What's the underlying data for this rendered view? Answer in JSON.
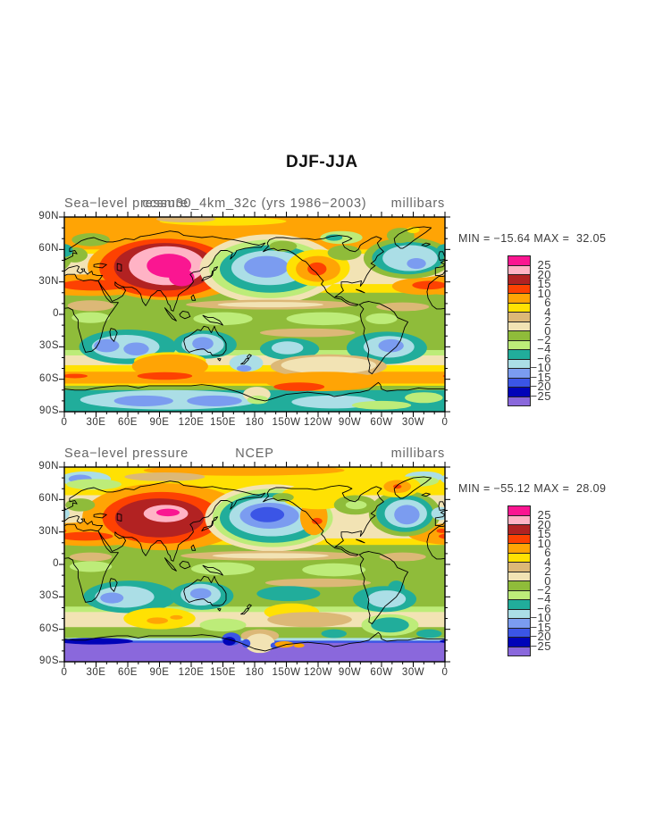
{
  "page": {
    "background": "#ffffff"
  },
  "chart_data": {
    "type": "heatmap",
    "main_title": "DJF-JJA",
    "quantity": "Sea-level pressure difference (DJF minus JJA)",
    "units": "millibars",
    "colorbar_labels": [
      "25",
      "20",
      "15",
      "10",
      "6",
      "4",
      "2",
      "0",
      "−2",
      "−4",
      "−6",
      "−10",
      "−15",
      "−20",
      "−25"
    ],
    "palette": [
      "#fa1691",
      "#ffb3c5",
      "#b22222",
      "#fd4102",
      "#ffa405",
      "#ffe103",
      "#dcb877",
      "#f2e3b4",
      "#8fbc3a",
      "#bdec79",
      "#21ad9b",
      "#abdee6",
      "#7b9cf0",
      "#3b55e6",
      "#0003b8",
      "#8a68dc"
    ],
    "x_tick_labels": [
      "0",
      "30E",
      "60E",
      "90E",
      "120E",
      "150E",
      "180",
      "150W",
      "120W",
      "90W",
      "60W",
      "30W",
      "0"
    ],
    "y_tick_labels": [
      "90N",
      "60N",
      "30N",
      "0",
      "30S",
      "60S",
      "90S"
    ],
    "axes": {
      "lon_range": [
        0,
        360
      ],
      "lat_range": [
        -90,
        90
      ],
      "major_tick_deg": 30,
      "minor_tick_deg": 10,
      "grid": false
    },
    "maps": [
      {
        "id": "model",
        "title_left": "Sea−level pressure",
        "title_center": "ccsm30_4km_32c (yrs 1986−2003)",
        "title_right": "millibars",
        "minmax": "MIN = −15.64 MAX =  32.05",
        "min": -15.64,
        "max": 32.05,
        "base": 8,
        "bands": [
          [
            90,
            56,
            4
          ],
          [
            60,
            52,
            5
          ],
          [
            56,
            13,
            7
          ],
          [
            28,
            13,
            5
          ],
          [
            20,
            -36,
            8
          ],
          [
            -33,
            -41,
            9
          ],
          [
            -38,
            -49,
            7
          ],
          [
            -47,
            -55,
            5
          ],
          [
            -53,
            -66,
            4
          ],
          [
            -64,
            -68,
            5
          ],
          [
            -66,
            -72,
            8
          ],
          [
            -70,
            -90,
            10
          ]
        ],
        "blobs": [
          [
            100,
            44,
            78,
            31,
            4
          ],
          [
            25,
            27,
            62,
            10,
            4
          ],
          [
            340,
            26,
            30,
            8,
            4
          ],
          [
            95,
            43,
            62,
            27,
            3
          ],
          [
            28,
            27,
            32,
            5,
            3
          ],
          [
            345,
            27,
            16,
            4,
            3
          ],
          [
            95,
            44,
            48,
            22,
            2
          ],
          [
            97,
            45,
            36,
            18,
            1
          ],
          [
            99,
            45,
            21,
            11,
            0
          ],
          [
            111,
            34,
            12,
            8,
            0
          ],
          [
            194,
            42,
            66,
            32,
            7
          ],
          [
            194,
            42,
            57,
            27,
            9
          ],
          [
            195,
            42,
            48,
            22,
            10
          ],
          [
            194,
            43,
            36,
            16,
            11
          ],
          [
            191,
            44,
            21,
            10,
            12
          ],
          [
            240,
            43,
            30,
            17,
            5
          ],
          [
            240,
            42,
            21,
            12,
            4
          ],
          [
            239,
            42,
            9,
            6,
            3
          ],
          [
            325,
            52,
            42,
            19,
            8
          ],
          [
            325,
            52,
            34,
            15,
            10
          ],
          [
            327,
            52,
            26,
            12,
            11
          ],
          [
            333,
            47,
            9,
            5,
            12
          ],
          [
            207,
            63,
            13,
            5,
            8
          ],
          [
            25,
            69,
            18,
            6,
            8
          ],
          [
            10,
            55,
            12,
            7,
            8
          ],
          [
            0,
            59,
            8,
            6,
            10
          ],
          [
            318,
            73,
            13,
            7,
            8
          ],
          [
            330,
            78,
            6,
            3,
            5
          ],
          [
            265,
            57,
            16,
            7,
            8
          ],
          [
            262,
            71,
            20,
            6,
            9
          ],
          [
            255,
            71,
            8,
            3,
            10
          ],
          [
            150,
            86,
            60,
            4,
            5
          ],
          [
            115,
            88,
            28,
            3,
            6
          ],
          [
            195,
            9,
            80,
            4.5,
            6
          ],
          [
            195,
            9,
            50,
            2.5,
            7
          ],
          [
            320,
            7,
            25,
            4,
            6
          ],
          [
            25,
            8,
            22,
            5,
            6
          ],
          [
            150,
            -4,
            28,
            6,
            9
          ],
          [
            245,
            -4,
            35,
            6,
            9
          ],
          [
            300,
            -4,
            15,
            5,
            9
          ],
          [
            25,
            -3,
            18,
            5,
            9
          ],
          [
            230,
            -17,
            45,
            4,
            6
          ],
          [
            60,
            -30,
            46,
            16,
            10
          ],
          [
            58,
            -30,
            32,
            11,
            11
          ],
          [
            40,
            -29,
            12,
            6,
            12
          ],
          [
            68,
            -32,
            12,
            6,
            12
          ],
          [
            133,
            -28,
            30,
            13,
            10
          ],
          [
            131,
            -28,
            20,
            10,
            11
          ],
          [
            131,
            -27,
            10,
            6,
            12
          ],
          [
            172,
            -45,
            16,
            8,
            11
          ],
          [
            170,
            -50,
            7,
            3,
            12
          ],
          [
            213,
            -32,
            28,
            10,
            10
          ],
          [
            211,
            -31,
            15,
            6,
            11
          ],
          [
            305,
            -31,
            38,
            15,
            10
          ],
          [
            307,
            -30,
            24,
            10,
            11
          ],
          [
            309,
            -29,
            12,
            6,
            12
          ],
          [
            100,
            -43,
            34,
            8,
            5
          ],
          [
            100,
            -48,
            36,
            11,
            4
          ],
          [
            95,
            -57,
            26,
            3.5,
            3
          ],
          [
            250,
            -48,
            55,
            11,
            6
          ],
          [
            250,
            -47,
            45,
            8,
            7
          ],
          [
            245,
            -62,
            55,
            9,
            4
          ],
          [
            222,
            -67,
            24,
            4,
            3
          ],
          [
            10,
            -57,
            12,
            2,
            3
          ],
          [
            100,
            -79,
            85,
            9,
            11
          ],
          [
            75,
            -80,
            28,
            5,
            12
          ],
          [
            142,
            -80,
            26,
            5,
            12
          ],
          [
            182,
            -74,
            13,
            7,
            7
          ],
          [
            183,
            -79,
            10,
            4,
            9
          ],
          [
            255,
            -81,
            40,
            6,
            11
          ],
          [
            300,
            -84,
            28,
            4,
            9
          ],
          [
            340,
            -77,
            18,
            5,
            9
          ]
        ]
      },
      {
        "id": "ncep",
        "title_left": "Sea−level pressure",
        "title_center": "NCEP",
        "title_right": "millibars",
        "minmax": "MIN = −55.12 MAX =  28.09",
        "min": -55.12,
        "max": 28.09,
        "base": 8,
        "bands": [
          [
            90,
            60,
            5
          ],
          [
            64,
            12,
            7
          ],
          [
            24,
            13,
            5
          ],
          [
            18,
            -42,
            8
          ],
          [
            -39,
            -46,
            9
          ],
          [
            -44,
            -60,
            7
          ],
          [
            -58,
            -70,
            8
          ],
          [
            -68,
            -72,
            11
          ],
          [
            -70.5,
            -73.5,
            13
          ],
          [
            -72.5,
            -90,
            15
          ]
        ],
        "blobs": [
          [
            95,
            44,
            78,
            31,
            4
          ],
          [
            25,
            28,
            60,
            11,
            4
          ],
          [
            352,
            29,
            14,
            5,
            4
          ],
          [
            92,
            43,
            56,
            24,
            3
          ],
          [
            20,
            26,
            26,
            4,
            3
          ],
          [
            357,
            31,
            5,
            2,
            3
          ],
          [
            90,
            43,
            42,
            18,
            2
          ],
          [
            96,
            47,
            21,
            8,
            1
          ],
          [
            98,
            48,
            11,
            3.5,
            0
          ],
          [
            197,
            43,
            64,
            31,
            7
          ],
          [
            197,
            43,
            57,
            27,
            9
          ],
          [
            197,
            43,
            50,
            23,
            10
          ],
          [
            196,
            44,
            40,
            18,
            11
          ],
          [
            194,
            45,
            28,
            12,
            12
          ],
          [
            192,
            46,
            16,
            7,
            13
          ],
          [
            236,
            44,
            13,
            17,
            4
          ],
          [
            239,
            40,
            5,
            3,
            3
          ],
          [
            322,
            47,
            34,
            21,
            8
          ],
          [
            322,
            47,
            27,
            17,
            10
          ],
          [
            323,
            47,
            20,
            13,
            11
          ],
          [
            324,
            46,
            12,
            9,
            12
          ],
          [
            356,
            47,
            9,
            6,
            11
          ],
          [
            240,
            63,
            35,
            12,
            5
          ],
          [
            207,
            62,
            10,
            4,
            8
          ],
          [
            275,
            55,
            20,
            9,
            8
          ],
          [
            276,
            55,
            10,
            4,
            9
          ],
          [
            15,
            55,
            14,
            6,
            8
          ],
          [
            20,
            79,
            24,
            7,
            11
          ],
          [
            15,
            79,
            11,
            4,
            12
          ],
          [
            28,
            74,
            26,
            5,
            9
          ],
          [
            340,
            81,
            18,
            5,
            11
          ],
          [
            334,
            77,
            20,
            5,
            9
          ],
          [
            315,
            72,
            22,
            10,
            5
          ],
          [
            315,
            72,
            13,
            6,
            4
          ],
          [
            315,
            72,
            4,
            2,
            3
          ],
          [
            170,
            87,
            95,
            5,
            4
          ],
          [
            95,
            81,
            38,
            4,
            6
          ],
          [
            195,
            8,
            85,
            4.5,
            6
          ],
          [
            195,
            8,
            55,
            2.5,
            7
          ],
          [
            320,
            7,
            22,
            4,
            6
          ],
          [
            25,
            7,
            20,
            4,
            6
          ],
          [
            150,
            -4,
            30,
            6,
            9
          ],
          [
            255,
            -5,
            30,
            6,
            9
          ],
          [
            25,
            -2,
            20,
            5,
            9
          ],
          [
            240,
            -17,
            50,
            4,
            6
          ],
          [
            314,
            -22,
            8,
            7,
            10
          ],
          [
            62,
            -30,
            44,
            15,
            10
          ],
          [
            57,
            -30,
            28,
            10,
            11
          ],
          [
            45,
            -31,
            11,
            5,
            12
          ],
          [
            130,
            -29,
            30,
            13,
            10
          ],
          [
            129,
            -28,
            19,
            10,
            11
          ],
          [
            129,
            -27,
            10,
            5,
            12
          ],
          [
            212,
            -27,
            30,
            7,
            10
          ],
          [
            303,
            -32,
            30,
            12,
            10
          ],
          [
            305,
            -32,
            18,
            8,
            11
          ],
          [
            90,
            -50,
            34,
            10,
            5
          ],
          [
            88,
            -52,
            10,
            3,
            4
          ],
          [
            106,
            -49,
            6,
            2,
            4
          ],
          [
            215,
            -44,
            26,
            8,
            5
          ],
          [
            232,
            -51,
            40,
            7,
            6
          ],
          [
            308,
            -56,
            27,
            10,
            9
          ],
          [
            308,
            -56,
            18,
            7,
            10
          ],
          [
            150,
            -56,
            22,
            6,
            9
          ],
          [
            30,
            -71,
            35,
            3,
            14
          ],
          [
            255,
            -64,
            12,
            4,
            10
          ],
          [
            345,
            -64,
            12,
            4,
            10
          ],
          [
            185,
            -66,
            18,
            6,
            6
          ],
          [
            185,
            -73,
            14,
            9,
            7
          ],
          [
            172,
            -73,
            4,
            4,
            13
          ],
          [
            199,
            -75,
            4,
            3,
            13
          ],
          [
            185,
            -86,
            16,
            4,
            15
          ],
          [
            208,
            -74,
            9,
            3,
            4
          ],
          [
            222,
            -75,
            5,
            2,
            4
          ],
          [
            158,
            -69,
            9,
            6,
            13
          ],
          [
            156,
            -71,
            6,
            4,
            14
          ]
        ]
      }
    ]
  }
}
